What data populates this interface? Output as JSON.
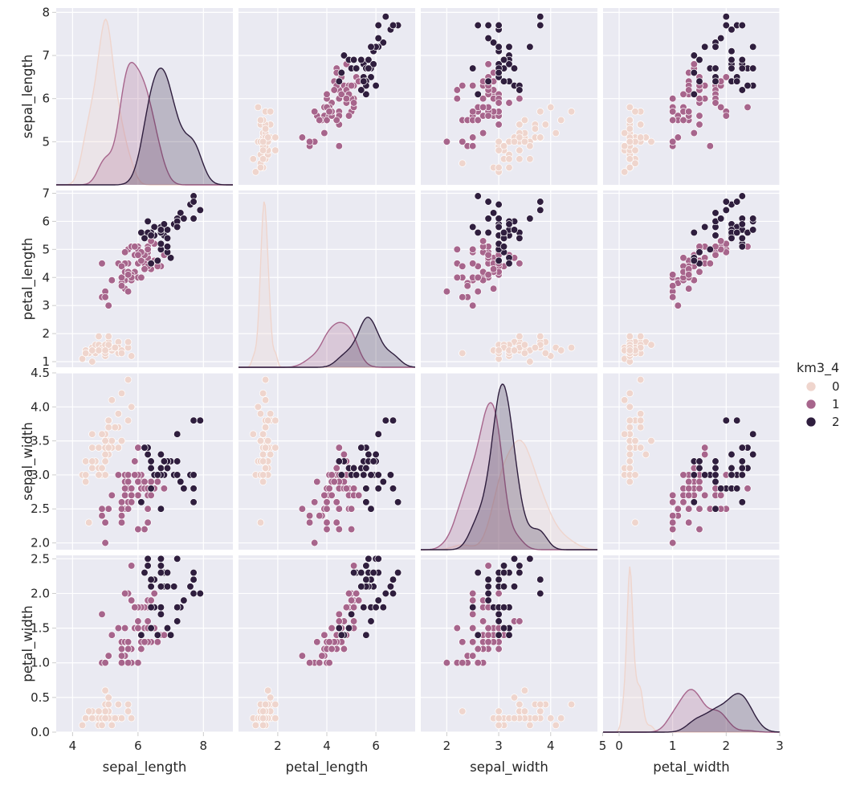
{
  "chart_data": {
    "type": "scatter",
    "subtype": "pairplot",
    "variables": [
      "sepal_length",
      "petal_length",
      "sepal_width",
      "petal_width"
    ],
    "diag_kind": "kde",
    "hue": "km3_4",
    "legend": {
      "title": "km3_4",
      "placement": "right",
      "entries": [
        {
          "label": "0",
          "color": "#efd5cd"
        },
        {
          "label": "1",
          "color": "#a7658c"
        },
        {
          "label": "2",
          "color": "#2f1e3e"
        }
      ]
    },
    "axes": {
      "sepal_length": {
        "range": [
          3.5,
          8.9
        ],
        "ticks": [
          4,
          6,
          8
        ],
        "row_range": [
          4.0,
          8.1
        ],
        "row_ticks": [
          5,
          6,
          7,
          8
        ]
      },
      "petal_length": {
        "range": [
          0.4,
          7.6
        ],
        "ticks": [
          2,
          4,
          6
        ],
        "row_range": [
          0.8,
          7.1
        ],
        "row_ticks": [
          1,
          2,
          3,
          4,
          5,
          6,
          7
        ]
      },
      "sepal_width": {
        "range": [
          1.5,
          4.9
        ],
        "ticks": [
          2,
          3,
          4,
          5
        ],
        "row_range": [
          1.9,
          4.5
        ],
        "row_ticks": [
          2.0,
          2.5,
          3.0,
          3.5,
          4.0,
          4.5
        ]
      },
      "petal_width": {
        "range": [
          -0.3,
          3.0
        ],
        "ticks": [
          0,
          1,
          2,
          3
        ],
        "row_range": [
          0.0,
          2.55
        ],
        "row_ticks": [
          0.0,
          0.5,
          1.0,
          1.5,
          2.0,
          2.5
        ]
      }
    },
    "grid": true,
    "style": {
      "background": "#eaeaf2",
      "grid_color": "#ffffff"
    },
    "clusters": {
      "0": [
        [
          5.1,
          1.4,
          3.5,
          0.2
        ],
        [
          4.9,
          1.4,
          3.0,
          0.2
        ],
        [
          4.7,
          1.3,
          3.2,
          0.2
        ],
        [
          4.6,
          1.5,
          3.1,
          0.2
        ],
        [
          5.0,
          1.4,
          3.6,
          0.2
        ],
        [
          5.4,
          1.7,
          3.9,
          0.4
        ],
        [
          4.6,
          1.4,
          3.4,
          0.3
        ],
        [
          5.0,
          1.5,
          3.4,
          0.2
        ],
        [
          4.4,
          1.4,
          2.9,
          0.2
        ],
        [
          4.9,
          1.5,
          3.1,
          0.1
        ],
        [
          5.4,
          1.5,
          3.7,
          0.2
        ],
        [
          4.8,
          1.6,
          3.4,
          0.2
        ],
        [
          4.8,
          1.4,
          3.0,
          0.1
        ],
        [
          4.3,
          1.1,
          3.0,
          0.1
        ],
        [
          5.8,
          1.2,
          4.0,
          0.2
        ],
        [
          5.7,
          1.5,
          4.4,
          0.4
        ],
        [
          5.4,
          1.3,
          3.9,
          0.4
        ],
        [
          5.1,
          1.4,
          3.5,
          0.3
        ],
        [
          5.7,
          1.7,
          3.8,
          0.3
        ],
        [
          5.1,
          1.5,
          3.8,
          0.3
        ],
        [
          5.4,
          1.7,
          3.4,
          0.2
        ],
        [
          5.1,
          1.5,
          3.7,
          0.4
        ],
        [
          4.6,
          1.0,
          3.6,
          0.2
        ],
        [
          5.1,
          1.7,
          3.3,
          0.5
        ],
        [
          4.8,
          1.9,
          3.4,
          0.2
        ],
        [
          5.0,
          1.6,
          3.0,
          0.2
        ],
        [
          5.0,
          1.6,
          3.4,
          0.4
        ],
        [
          5.2,
          1.5,
          3.5,
          0.2
        ],
        [
          5.2,
          1.4,
          3.4,
          0.2
        ],
        [
          4.7,
          1.6,
          3.2,
          0.2
        ],
        [
          4.8,
          1.6,
          3.1,
          0.2
        ],
        [
          5.4,
          1.5,
          3.4,
          0.4
        ],
        [
          5.2,
          1.5,
          4.1,
          0.1
        ],
        [
          5.5,
          1.4,
          4.2,
          0.2
        ],
        [
          4.9,
          1.5,
          3.1,
          0.2
        ],
        [
          5.0,
          1.2,
          3.2,
          0.2
        ],
        [
          5.5,
          1.3,
          3.5,
          0.2
        ],
        [
          4.9,
          1.4,
          3.6,
          0.1
        ],
        [
          4.4,
          1.3,
          3.0,
          0.2
        ],
        [
          5.1,
          1.5,
          3.4,
          0.2
        ],
        [
          5.0,
          1.3,
          3.5,
          0.3
        ],
        [
          4.5,
          1.3,
          2.3,
          0.3
        ],
        [
          4.4,
          1.3,
          3.2,
          0.2
        ],
        [
          5.0,
          1.6,
          3.5,
          0.6
        ],
        [
          5.1,
          1.9,
          3.8,
          0.4
        ],
        [
          4.8,
          1.4,
          3.0,
          0.3
        ],
        [
          5.1,
          1.6,
          3.8,
          0.2
        ],
        [
          4.6,
          1.4,
          3.2,
          0.2
        ],
        [
          5.3,
          1.5,
          3.7,
          0.2
        ],
        [
          5.0,
          1.4,
          3.3,
          0.2
        ]
      ],
      "1": [
        [
          5.5,
          4.0,
          2.3,
          1.3
        ],
        [
          6.5,
          4.6,
          2.8,
          1.5
        ],
        [
          5.7,
          4.5,
          2.8,
          1.3
        ],
        [
          6.3,
          4.7,
          3.3,
          1.6
        ],
        [
          4.9,
          3.3,
          2.4,
          1.0
        ],
        [
          6.6,
          4.6,
          2.9,
          1.3
        ],
        [
          5.2,
          3.9,
          2.7,
          1.4
        ],
        [
          5.0,
          3.5,
          2.0,
          1.0
        ],
        [
          5.9,
          4.2,
          3.0,
          1.5
        ],
        [
          6.0,
          4.0,
          2.2,
          1.0
        ],
        [
          6.1,
          4.7,
          2.9,
          1.4
        ],
        [
          5.6,
          3.6,
          2.9,
          1.3
        ],
        [
          6.7,
          4.4,
          3.1,
          1.4
        ],
        [
          5.6,
          4.5,
          3.0,
          1.5
        ],
        [
          5.8,
          4.1,
          2.7,
          1.0
        ],
        [
          6.2,
          4.5,
          2.2,
          1.5
        ],
        [
          5.6,
          3.9,
          2.5,
          1.1
        ],
        [
          5.9,
          4.8,
          3.2,
          1.8
        ],
        [
          6.1,
          4.0,
          2.8,
          1.3
        ],
        [
          6.3,
          4.9,
          2.5,
          1.5
        ],
        [
          6.1,
          4.7,
          2.8,
          1.2
        ],
        [
          6.4,
          4.3,
          2.9,
          1.3
        ],
        [
          6.6,
          4.4,
          3.0,
          1.4
        ],
        [
          6.8,
          4.8,
          2.8,
          1.4
        ],
        [
          6.0,
          4.5,
          2.9,
          1.5
        ],
        [
          5.7,
          3.5,
          2.6,
          1.0
        ],
        [
          5.5,
          3.8,
          2.4,
          1.1
        ],
        [
          5.5,
          3.7,
          2.4,
          1.0
        ],
        [
          5.8,
          3.9,
          2.7,
          1.2
        ],
        [
          6.0,
          5.1,
          2.7,
          1.6
        ],
        [
          5.4,
          4.5,
          3.0,
          1.5
        ],
        [
          6.0,
          4.5,
          3.4,
          1.6
        ],
        [
          6.3,
          4.4,
          2.3,
          1.3
        ],
        [
          5.6,
          4.1,
          3.0,
          1.3
        ],
        [
          5.5,
          4.0,
          2.5,
          1.3
        ],
        [
          5.5,
          4.4,
          2.6,
          1.2
        ],
        [
          6.1,
          4.6,
          3.0,
          1.4
        ],
        [
          5.8,
          4.0,
          2.6,
          1.2
        ],
        [
          5.0,
          3.3,
          2.3,
          1.0
        ],
        [
          5.6,
          4.2,
          2.7,
          1.3
        ],
        [
          5.7,
          4.2,
          3.0,
          1.2
        ],
        [
          5.7,
          4.2,
          2.9,
          1.3
        ],
        [
          6.2,
          4.3,
          2.9,
          1.3
        ],
        [
          5.1,
          3.0,
          2.5,
          1.1
        ],
        [
          5.7,
          4.1,
          2.8,
          1.3
        ],
        [
          5.8,
          5.1,
          2.7,
          1.9
        ],
        [
          4.9,
          4.5,
          2.5,
          1.7
        ],
        [
          5.7,
          5.0,
          2.5,
          2.0
        ],
        [
          5.8,
          5.1,
          2.8,
          2.4
        ],
        [
          6.0,
          5.0,
          2.2,
          1.5
        ],
        [
          5.6,
          4.9,
          2.8,
          2.0
        ],
        [
          6.3,
          4.9,
          2.7,
          1.8
        ],
        [
          6.2,
          4.8,
          2.8,
          1.8
        ],
        [
          6.1,
          4.9,
          3.0,
          1.8
        ],
        [
          6.3,
          5.1,
          2.8,
          1.5
        ],
        [
          6.0,
          4.8,
          3.0,
          1.8
        ],
        [
          5.8,
          5.1,
          2.7,
          1.9
        ],
        [
          6.3,
          5.0,
          2.5,
          1.9
        ],
        [
          5.9,
          5.1,
          3.0,
          1.8
        ],
        [
          6.5,
          5.2,
          3.0,
          2.0
        ],
        [
          6.4,
          5.3,
          2.7,
          1.9
        ],
        [
          6.5,
          5.5,
          3.0,
          1.8
        ]
      ],
      "2": [
        [
          7.0,
          4.7,
          3.2,
          1.4
        ],
        [
          6.4,
          4.5,
          3.2,
          1.5
        ],
        [
          6.9,
          4.9,
          3.1,
          1.5
        ],
        [
          6.7,
          5.0,
          3.0,
          1.7
        ],
        [
          6.3,
          6.0,
          3.3,
          2.5
        ],
        [
          7.1,
          5.9,
          3.0,
          2.1
        ],
        [
          6.5,
          5.8,
          3.0,
          2.2
        ],
        [
          7.6,
          6.6,
          3.0,
          2.1
        ],
        [
          7.3,
          6.3,
          2.9,
          1.8
        ],
        [
          6.7,
          5.8,
          2.5,
          1.8
        ],
        [
          7.2,
          6.1,
          3.6,
          2.5
        ],
        [
          6.8,
          5.5,
          3.0,
          2.1
        ],
        [
          6.4,
          5.5,
          3.2,
          1.8
        ],
        [
          6.5,
          5.5,
          3.0,
          1.8
        ],
        [
          7.7,
          6.7,
          3.8,
          2.2
        ],
        [
          7.7,
          6.9,
          2.6,
          2.3
        ],
        [
          6.9,
          5.7,
          3.2,
          2.3
        ],
        [
          7.7,
          6.7,
          2.8,
          2.0
        ],
        [
          6.7,
          5.7,
          3.3,
          2.1
        ],
        [
          7.2,
          6.0,
          3.2,
          1.8
        ],
        [
          6.4,
          5.6,
          2.8,
          2.1
        ],
        [
          7.2,
          5.8,
          3.0,
          1.6
        ],
        [
          7.4,
          6.1,
          2.8,
          1.9
        ],
        [
          7.9,
          6.4,
          3.8,
          2.0
        ],
        [
          6.4,
          5.6,
          2.8,
          2.2
        ],
        [
          6.1,
          5.6,
          2.6,
          1.4
        ],
        [
          7.7,
          6.1,
          3.0,
          2.3
        ],
        [
          6.3,
          5.6,
          3.4,
          2.4
        ],
        [
          6.4,
          5.5,
          3.1,
          1.8
        ],
        [
          6.9,
          5.4,
          3.1,
          2.1
        ],
        [
          6.7,
          5.6,
          3.1,
          2.4
        ],
        [
          6.9,
          5.1,
          3.1,
          2.3
        ],
        [
          6.8,
          5.9,
          3.2,
          2.3
        ],
        [
          6.7,
          5.7,
          3.3,
          2.5
        ],
        [
          6.7,
          5.2,
          3.0,
          2.3
        ],
        [
          6.2,
          5.4,
          3.4,
          2.3
        ],
        [
          6.6,
          4.6,
          3.0,
          1.4
        ],
        [
          6.9,
          5.1,
          3.1,
          2.3
        ]
      ]
    }
  }
}
